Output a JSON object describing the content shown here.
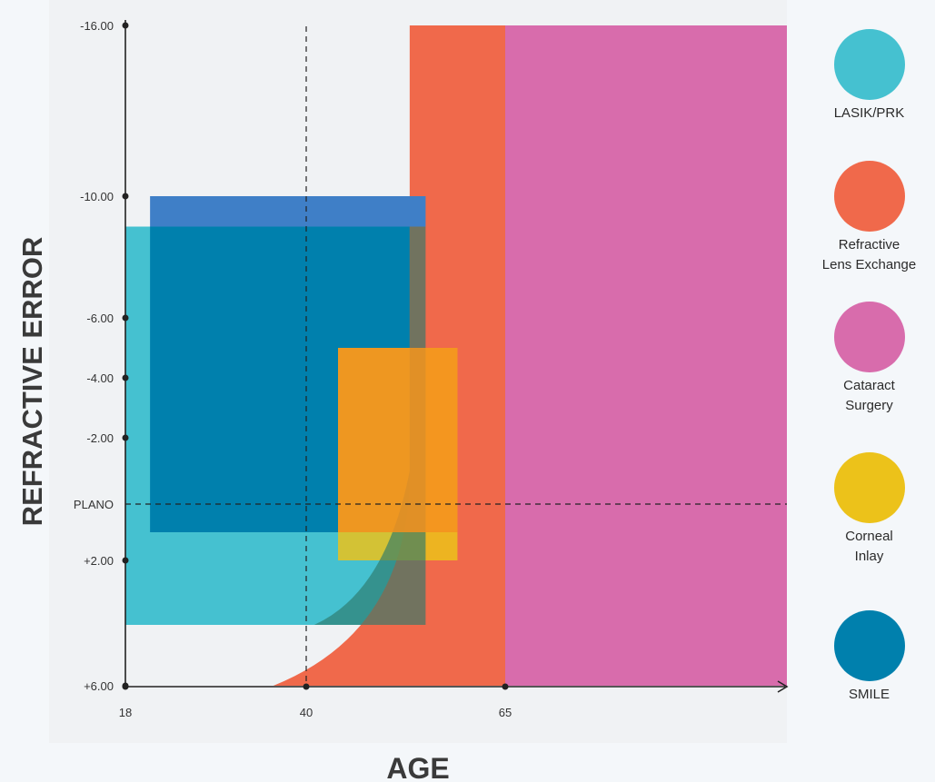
{
  "chart_data": {
    "type": "area",
    "xlabel": "AGE",
    "ylabel": "REFRACTIVE ERROR",
    "x_ticks": [
      {
        "value": 18,
        "label": "18"
      },
      {
        "value": 40,
        "label": "40"
      },
      {
        "value": 65,
        "label": "65"
      }
    ],
    "y_ticks": [
      {
        "value": -16,
        "label": "-16.00"
      },
      {
        "value": -10,
        "label": "-10.00"
      },
      {
        "value": -6,
        "label": "-6.00"
      },
      {
        "value": -4,
        "label": "-4.00"
      },
      {
        "value": -2,
        "label": "-2.00"
      },
      {
        "value": 0,
        "label": "PLANO"
      },
      {
        "value": 2,
        "label": "+2.00"
      },
      {
        "value": 6,
        "label": "+6.00"
      }
    ],
    "xlim": [
      18,
      98
    ],
    "ylim": [
      -16,
      6
    ],
    "y_inverted": true,
    "reference_lines": [
      {
        "axis": "x",
        "value": 40,
        "style": "dashed"
      },
      {
        "axis": "y",
        "value": 0,
        "style": "dashed"
      }
    ],
    "series": [
      {
        "name": "LASIK/PRK",
        "color": "#45c1d0",
        "x_range": [
          18,
          55
        ],
        "y_range": [
          -9,
          4
        ]
      },
      {
        "name": "SMILE",
        "color": "#0080ad",
        "x_range": [
          21,
          55
        ],
        "y_range": [
          -9,
          1
        ]
      },
      {
        "name": "Refractive Lens Exchange",
        "color": "#f0694b",
        "x_range": [
          53,
          98
        ],
        "y_range": [
          -16,
          6
        ],
        "lower_boundary_curve": true
      },
      {
        "name": "Cataract Surgery",
        "color": "#d86cac",
        "x_range": [
          65,
          98
        ],
        "y_range": [
          -16,
          6
        ]
      },
      {
        "name": "Corneal Inlay",
        "color": "#ecc21a",
        "x_range": [
          44,
          59
        ],
        "y_range": [
          -5,
          2
        ]
      }
    ],
    "grid": false,
    "legend_position": "right"
  },
  "legend": [
    {
      "label": "LASIK/PRK",
      "color": "#45c1d0"
    },
    {
      "label": "Refractive\nLens Exchange",
      "color": "#f0694b"
    },
    {
      "label": "Cataract\nSurgery",
      "color": "#d86cac"
    },
    {
      "label": "Corneal\nInlay",
      "color": "#ecc21a"
    },
    {
      "label": "SMILE",
      "color": "#0080ad"
    }
  ]
}
